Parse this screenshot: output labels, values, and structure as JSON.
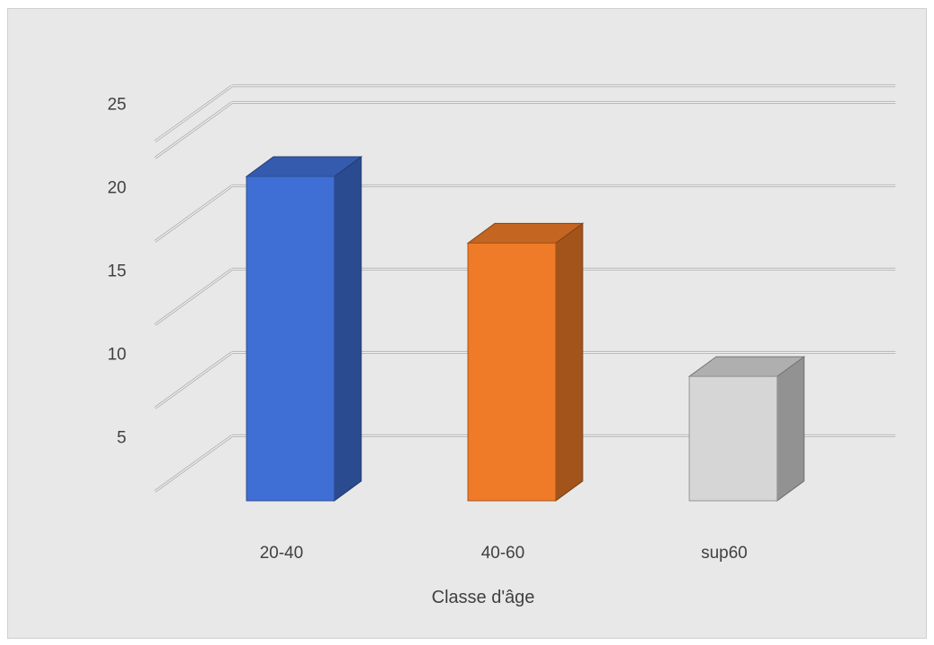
{
  "chart_data": {
    "type": "bar",
    "style": "3d-column",
    "categories": [
      "20-40",
      "40-60",
      "sup60"
    ],
    "values": [
      24,
      20,
      12
    ],
    "colors": [
      "#3f6fd4",
      "#ef7b28",
      "#d6d6d6"
    ],
    "xlabel": "Classe d'âge",
    "ylabel": "",
    "yticks": [
      5,
      10,
      15,
      20,
      25
    ],
    "ylim": [
      4,
      26
    ],
    "grid": true,
    "legend": "none"
  }
}
